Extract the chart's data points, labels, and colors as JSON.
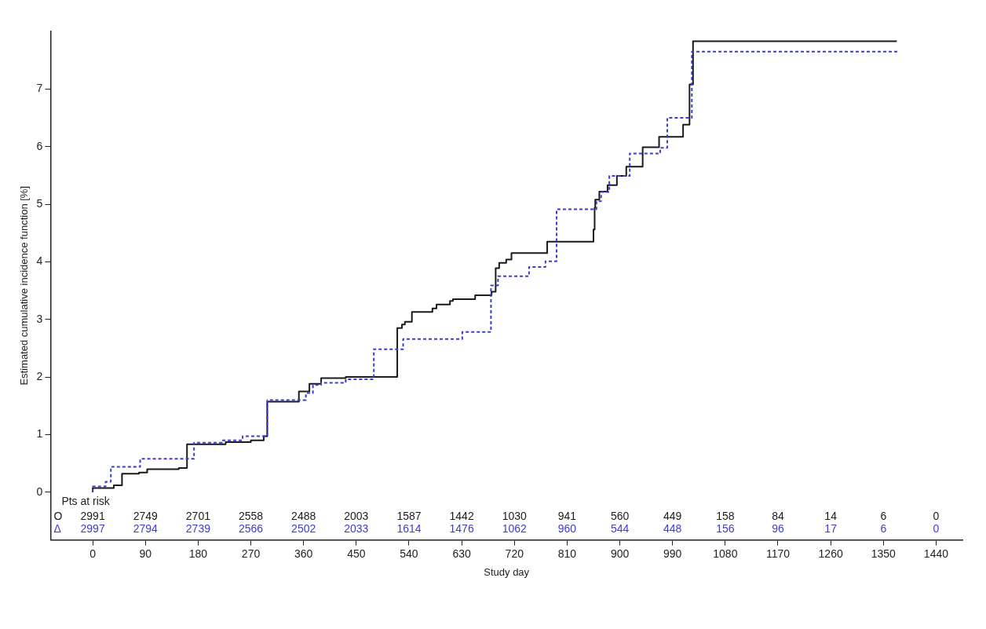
{
  "chart_data": {
    "type": "step",
    "xlabel": "Study day",
    "ylabel": "Estimated cumulative incidence function [%]",
    "xlim": [
      -72,
      1485
    ],
    "xticks": [
      0,
      90,
      180,
      270,
      360,
      450,
      540,
      630,
      720,
      810,
      900,
      990,
      1080,
      1170,
      1260,
      1350,
      1440
    ],
    "ylim": [
      -0.83,
      8
    ],
    "yticks": [
      0,
      1,
      2,
      3,
      4,
      5,
      6,
      7
    ],
    "grid": false,
    "legend": "bottom left",
    "series": [
      {
        "name": "O",
        "color": "#1a1a1a",
        "line_style": "solid",
        "x": [
          0,
          36,
          50,
          79,
          93,
          147,
          161,
          222,
          227,
          270,
          292,
          298,
          352,
          370,
          390,
          432,
          520,
          528,
          533,
          545,
          580,
          587,
          610,
          615,
          653,
          681,
          688,
          694,
          706,
          715,
          776,
          855,
          857,
          858,
          865,
          879,
          895,
          911,
          939,
          967,
          1008,
          1019,
          1025,
          1135,
          1373
        ],
        "values": [
          0,
          0.07,
          0.12,
          0.32,
          0.34,
          0.4,
          0.42,
          0.83,
          0.83,
          0.87,
          0.9,
          0.97,
          1.57,
          1.75,
          1.88,
          1.98,
          2.0,
          2.85,
          2.91,
          2.96,
          3.13,
          3.19,
          3.26,
          3.32,
          3.35,
          3.42,
          3.48,
          3.89,
          3.98,
          4.04,
          4.15,
          4.35,
          4.56,
          4.94,
          5.08,
          5.22,
          5.33,
          5.49,
          5.65,
          5.99,
          6.17,
          6.38,
          7.08,
          7.83,
          7.83
        ]
      },
      {
        "name": "Δ",
        "color": "#3c3cd2",
        "line_style": "dashed",
        "x": [
          0,
          22,
          31,
          81,
          173,
          221,
          256,
          298,
          364,
          376,
          390,
          432,
          480,
          530,
          631,
          680,
          692,
          745,
          773,
          792,
          860,
          868,
          882,
          917,
          969,
          981,
          1023,
          1031,
          1377
        ],
        "values": [
          0,
          0.1,
          0.18,
          0.44,
          0.58,
          0.86,
          0.9,
          0.97,
          1.6,
          1.72,
          1.86,
          1.9,
          1.96,
          2.48,
          2.66,
          2.78,
          3.59,
          3.75,
          3.91,
          4.01,
          4.91,
          5.05,
          5.21,
          5.49,
          5.88,
          5.98,
          6.5,
          7.65,
          7.65
        ]
      }
    ],
    "annotations": [
      "Pts at risk",
      "2991",
      "2749",
      "2701",
      "2558",
      "2488",
      "2003",
      "1587",
      "1442",
      "1030",
      "941",
      "560",
      "449",
      "158",
      "84",
      "14",
      "6",
      "0",
      "2997",
      "2794",
      "2739",
      "2566",
      "2502",
      "2033",
      "1614",
      "1476",
      "1062",
      "960",
      "544",
      "448",
      "156",
      "96",
      "17",
      "6",
      "0"
    ]
  }
}
